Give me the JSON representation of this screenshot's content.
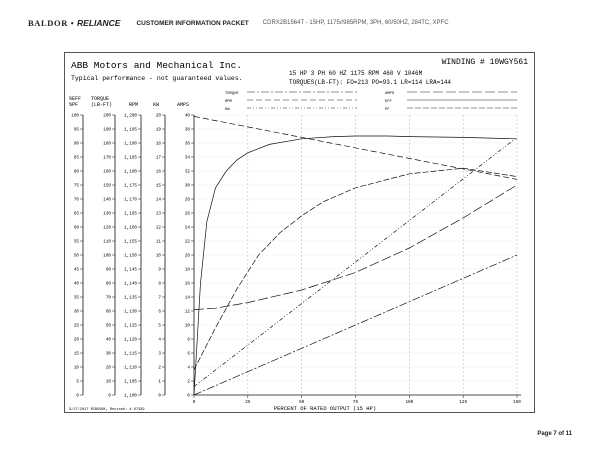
{
  "header": {
    "logo_text": "BALDOR",
    "logo_dot": "•",
    "logo_brand": "RELIANCE",
    "section_title": "CUSTOMER INFORMATION PACKET",
    "model_description": "CDRX2B1564T - 15HP, 1175//985RPM, 3PH, 60/50HZ, 284TC, XPFC"
  },
  "sheet": {
    "company": "ABB Motors and Mechanical Inc.",
    "winding": "WINDING # 10WGY561",
    "disclaimer": "Typical performance - not guaranteed values.",
    "rating_line": "15 HP  3 PH  60 HZ  1175 RPM  460 V  1046M",
    "torques_line": "TORQUES(LB-FT): FO=213  PO=93.1  LR=114  LRA=144",
    "legend": [
      "TORQUE",
      "RPM",
      "KW",
      "AMPS",
      "EFF",
      "PF"
    ],
    "footnote": "3/27/2017 RCB596K, Revised: # 67339",
    "column_heads": {
      "pf_top": "%EFF",
      "pf_bottom": "%PF",
      "torque_top": "TORQUE",
      "torque_bottom": "(LB-FT)",
      "rpm": "RPM",
      "kw": "KW",
      "amps": "AMPS"
    }
  },
  "chart_data": {
    "type": "line",
    "title": "",
    "xlabel": "PERCENT OF RATED OUTPUT (15 HP)",
    "xticks": [
      0,
      25,
      50,
      75,
      100,
      125,
      150
    ],
    "xlim": [
      0,
      150
    ],
    "y_scales": {
      "pct_eff_pf": {
        "ticks": [
          0,
          5,
          10,
          15,
          20,
          25,
          30,
          35,
          40,
          45,
          50,
          55,
          60,
          65,
          70,
          75,
          80,
          85,
          90,
          95,
          100
        ],
        "range": [
          0,
          100
        ]
      },
      "torque_lbft": {
        "ticks": [
          0,
          10,
          20,
          30,
          40,
          50,
          60,
          70,
          80,
          90,
          100,
          110,
          120,
          130,
          140,
          150,
          160,
          170,
          180,
          190,
          200
        ],
        "range": [
          0,
          200
        ]
      },
      "rpm": {
        "ticks": [
          "1,100",
          "1,105",
          "1,110",
          "1,115",
          "1,120",
          "1,125",
          "1,130",
          "1,135",
          "1,140",
          "1,145",
          "1,150",
          "1,155",
          "1,160",
          "1,165",
          "1,170",
          "1,175",
          "1,180",
          "1,185",
          "1,190",
          "1,195",
          "1,200"
        ],
        "range": [
          1100,
          1200
        ]
      },
      "kw": {
        "ticks": [
          0,
          1,
          2,
          3,
          4,
          5,
          6,
          7,
          8,
          9,
          10,
          11,
          12,
          13,
          14,
          15,
          16,
          17,
          18,
          19,
          20
        ],
        "range": [
          0,
          20
        ]
      },
      "amps": {
        "ticks": [
          0,
          2,
          4,
          6,
          8,
          10,
          12,
          14,
          16,
          18,
          20,
          22,
          24,
          26,
          28,
          30,
          32,
          34,
          36,
          38,
          40
        ],
        "range": [
          0,
          40
        ]
      }
    },
    "grid": true,
    "series": [
      {
        "name": "EFF",
        "unit": "%",
        "x": [
          0,
          3,
          6,
          10,
          15,
          20,
          25,
          35,
          50,
          65,
          75,
          90,
          100,
          125,
          150
        ],
        "y": [
          0,
          40,
          62,
          74,
          80,
          84,
          86.5,
          89.5,
          91.5,
          92.3,
          92.5,
          92.5,
          92.3,
          92,
          91.5
        ]
      },
      {
        "name": "PF",
        "unit": "%",
        "x": [
          0,
          10,
          20,
          30,
          40,
          50,
          60,
          75,
          100,
          125,
          150
        ],
        "y": [
          9,
          24,
          38,
          50,
          58,
          64,
          69,
          74,
          79,
          81,
          78
        ]
      },
      {
        "name": "RPM",
        "unit": "rpm",
        "x": [
          0,
          150
        ],
        "y": [
          1199.5,
          1177
        ]
      },
      {
        "name": "AMPS",
        "unit": "A",
        "x": [
          0,
          10,
          25,
          50,
          75,
          100,
          125,
          150
        ],
        "y": [
          12.2,
          12.4,
          13.2,
          15.0,
          17.5,
          21.0,
          25.3,
          30.0
        ]
      },
      {
        "name": "KW",
        "unit": "kW",
        "x": [
          0,
          150
        ],
        "y": [
          0.6,
          18.4
        ]
      },
      {
        "name": "TORQUE",
        "unit": "lb-ft",
        "x": [
          0,
          150
        ],
        "y": [
          0,
          100
        ]
      }
    ]
  },
  "footer": {
    "page_label": "Page 7 of 11"
  }
}
